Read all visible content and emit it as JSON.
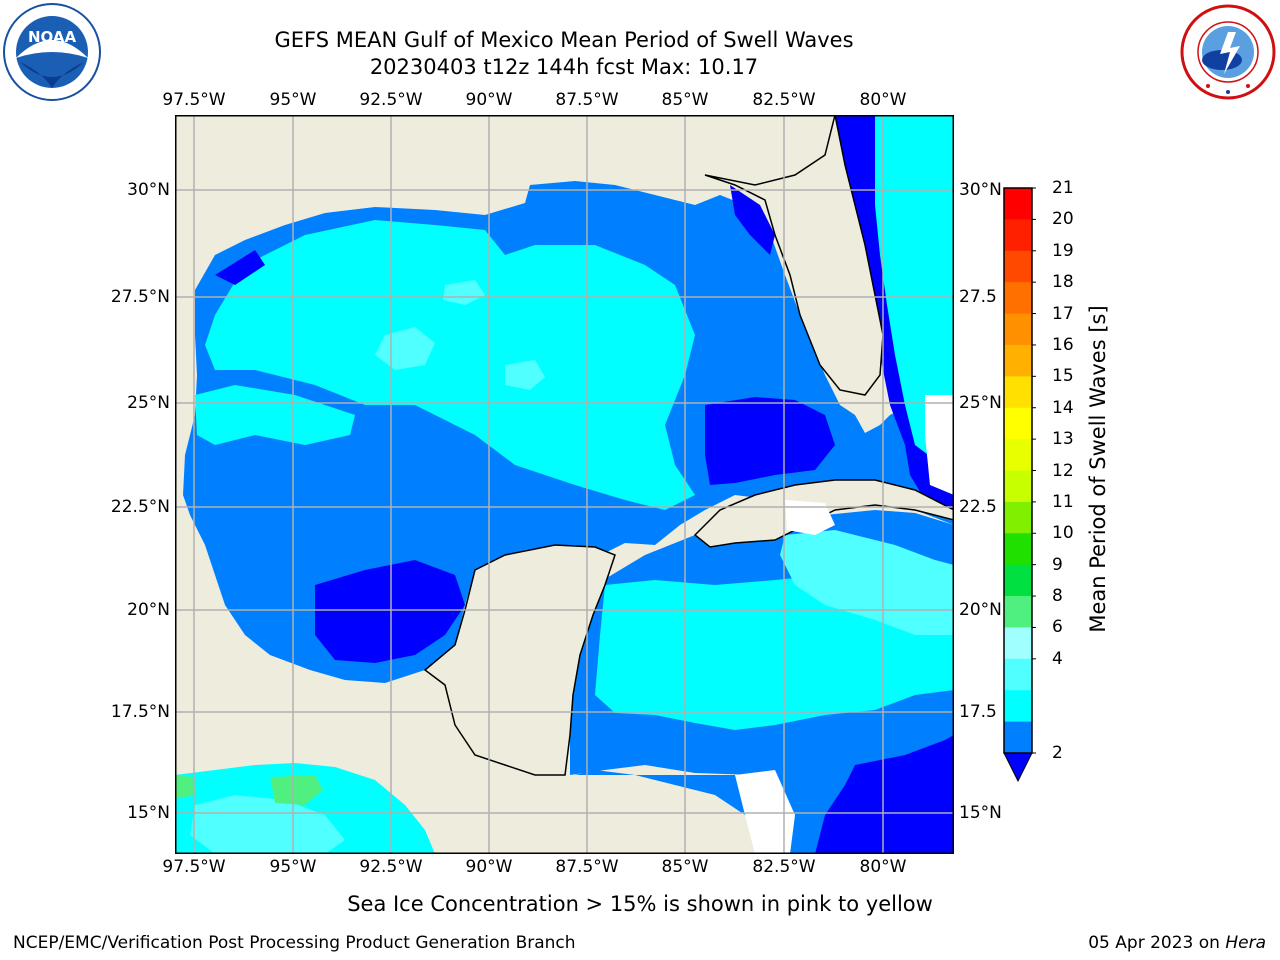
{
  "header": {
    "title_line1": "GEFS MEAN Gulf of Mexico Mean Period of Swell Waves",
    "title_line2": "20230403 t12z 144h fcst   Max: 10.17"
  },
  "logos": {
    "noaa_text": "NOAA",
    "nws_text": "NATIONAL WEATHER SERVICE"
  },
  "map": {
    "lon_ticks": [
      "97.5°W",
      "95°W",
      "92.5°W",
      "90°W",
      "87.5°W",
      "85°W",
      "82.5°W",
      "80°W"
    ],
    "lat_ticks_left": [
      "30°N",
      "27.5°N",
      "25°N",
      "22.5°N",
      "20°N",
      "17.5°N",
      "15°N"
    ],
    "lat_ticks_right": [
      "30°N",
      "27.5",
      "25°N",
      "22.5",
      "20°N",
      "17.5",
      "15°N"
    ],
    "colors": {
      "land": "#eeecdc",
      "ocean_light": "#00ffff",
      "ocean_mid": "#0080ff",
      "ocean_dark": "#0000ff",
      "grid": "#b0b0b0"
    }
  },
  "colorbar": {
    "label": "Mean Period of Swell Waves [s]",
    "ticks": [
      "21",
      "20",
      "19",
      "18",
      "17",
      "16",
      "15",
      "14",
      "13",
      "12",
      "11",
      "10",
      "9",
      "8",
      "6",
      "4",
      "2"
    ],
    "colors": [
      "#ff0000",
      "#ff2000",
      "#ff4800",
      "#ff7000",
      "#ff9000",
      "#ffb000",
      "#ffe000",
      "#ffff00",
      "#e8ff00",
      "#c8ff00",
      "#80f000",
      "#20e000",
      "#00e040",
      "#50f080",
      "#a0ffff",
      "#50ffff",
      "#00ffff",
      "#0080ff"
    ],
    "extend_color": "#0000ff"
  },
  "note": "Sea Ice Concentration > 15% is shown in pink to yellow",
  "footer": {
    "left": "NCEP/EMC/Verification Post Processing Product Generation Branch",
    "right_date": "05 Apr 2023 on",
    "right_host": "Hera"
  }
}
